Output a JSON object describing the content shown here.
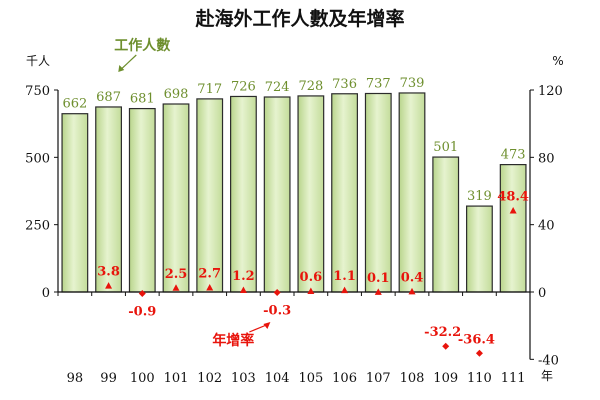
{
  "chart_data": {
    "type": "bar",
    "title": "赴海外工作人數及年增率",
    "categories": [
      "98",
      "99",
      "100",
      "101",
      "102",
      "103",
      "104",
      "105",
      "106",
      "107",
      "108",
      "109",
      "110",
      "111"
    ],
    "x_unit": "年",
    "series": [
      {
        "name": "工作人數",
        "kind": "bar",
        "axis": "left",
        "color": "#d4e8b0",
        "values": [
          662,
          687,
          681,
          698,
          717,
          726,
          724,
          728,
          736,
          737,
          739,
          501,
          319,
          473
        ]
      },
      {
        "name": "年增率",
        "kind": "scatter",
        "axis": "right",
        "color": "#e8140c",
        "values": [
          null,
          3.8,
          -0.9,
          2.5,
          2.7,
          1.2,
          -0.3,
          0.6,
          1.1,
          0.1,
          0.4,
          -32.2,
          -36.4,
          48.4
        ],
        "labels": [
          "",
          "3.8",
          "-0.9",
          "2.5",
          "2.7",
          "1.2",
          "-0.3",
          "0.6",
          "1.1",
          "0.1",
          "0.4",
          "-32.2",
          "-36.4",
          "48.4"
        ]
      }
    ],
    "left_axis": {
      "unit": "千人",
      "ylim": [
        0,
        750
      ],
      "ticks": [
        0,
        250,
        500,
        750
      ]
    },
    "right_axis": {
      "unit": "%",
      "ylim": [
        -40,
        120
      ],
      "ticks": [
        -40,
        0,
        40,
        80,
        120
      ]
    },
    "grid": false
  }
}
